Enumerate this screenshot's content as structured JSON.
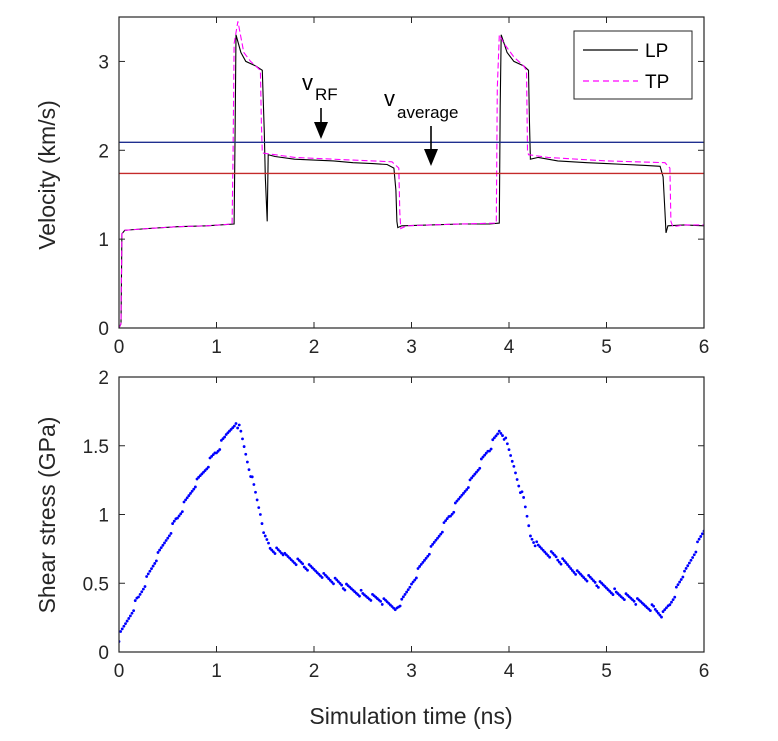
{
  "chart_data": [
    {
      "type": "line",
      "xlabel": "",
      "ylabel": "Velocity (km/s)",
      "xlim": [
        0,
        6
      ],
      "ylim": [
        0,
        3.5
      ],
      "xticks": [
        "0",
        "1",
        "2",
        "3",
        "4",
        "5",
        "6"
      ],
      "yticks": [
        "0",
        "1",
        "2",
        "3"
      ],
      "legend": {
        "position": "top-right",
        "entries": [
          "LP",
          "TP"
        ]
      },
      "series": [
        {
          "name": "LP",
          "color": "#000000",
          "style": "solid",
          "points": [
            [
              0,
              0
            ],
            [
              0.02,
              0.05
            ],
            [
              0.03,
              1.06
            ],
            [
              0.06,
              1.1
            ],
            [
              0.3,
              1.12
            ],
            [
              0.6,
              1.14
            ],
            [
              0.9,
              1.15
            ],
            [
              1.18,
              1.17
            ],
            [
              1.19,
              2.1
            ],
            [
              1.2,
              3.3
            ],
            [
              1.25,
              3.1
            ],
            [
              1.3,
              3.0
            ],
            [
              1.4,
              2.95
            ],
            [
              1.47,
              2.9
            ],
            [
              1.49,
              2.2
            ],
            [
              1.5,
              1.7
            ],
            [
              1.52,
              1.2
            ],
            [
              1.53,
              1.95
            ],
            [
              1.6,
              1.93
            ],
            [
              1.8,
              1.9
            ],
            [
              2.0,
              1.89
            ],
            [
              2.2,
              1.88
            ],
            [
              2.4,
              1.86
            ],
            [
              2.6,
              1.85
            ],
            [
              2.75,
              1.84
            ],
            [
              2.82,
              1.8
            ],
            [
              2.84,
              1.55
            ],
            [
              2.85,
              1.2
            ],
            [
              2.86,
              1.13
            ],
            [
              2.9,
              1.15
            ],
            [
              3.2,
              1.16
            ],
            [
              3.5,
              1.17
            ],
            [
              3.8,
              1.17
            ],
            [
              3.9,
              1.18
            ],
            [
              3.91,
              2.5
            ],
            [
              3.92,
              3.3
            ],
            [
              3.98,
              3.1
            ],
            [
              4.05,
              3.0
            ],
            [
              4.15,
              2.95
            ],
            [
              4.2,
              2.9
            ],
            [
              4.21,
              2.3
            ],
            [
              4.22,
              1.9
            ],
            [
              4.3,
              1.92
            ],
            [
              4.5,
              1.88
            ],
            [
              4.8,
              1.86
            ],
            [
              5.0,
              1.85
            ],
            [
              5.2,
              1.84
            ],
            [
              5.4,
              1.83
            ],
            [
              5.55,
              1.82
            ],
            [
              5.58,
              1.7
            ],
            [
              5.6,
              1.3
            ],
            [
              5.61,
              1.07
            ],
            [
              5.63,
              1.15
            ],
            [
              5.8,
              1.16
            ],
            [
              6.0,
              1.15
            ]
          ]
        },
        {
          "name": "TP",
          "color": "#ff00ff",
          "style": "dashed",
          "points": [
            [
              0,
              0
            ],
            [
              0.02,
              0.05
            ],
            [
              0.03,
              1.06
            ],
            [
              0.06,
              1.1
            ],
            [
              0.3,
              1.12
            ],
            [
              0.6,
              1.14
            ],
            [
              0.9,
              1.15
            ],
            [
              1.16,
              1.17
            ],
            [
              1.17,
              2.0
            ],
            [
              1.18,
              3.2
            ],
            [
              1.22,
              3.45
            ],
            [
              1.28,
              3.1
            ],
            [
              1.35,
              3.0
            ],
            [
              1.45,
              2.9
            ],
            [
              1.46,
              2.3
            ],
            [
              1.47,
              1.97
            ],
            [
              1.6,
              1.95
            ],
            [
              1.8,
              1.92
            ],
            [
              2.0,
              1.91
            ],
            [
              2.2,
              1.9
            ],
            [
              2.4,
              1.89
            ],
            [
              2.6,
              1.88
            ],
            [
              2.8,
              1.87
            ],
            [
              2.87,
              1.8
            ],
            [
              2.88,
              1.3
            ],
            [
              2.89,
              1.12
            ],
            [
              2.95,
              1.15
            ],
            [
              3.2,
              1.16
            ],
            [
              3.5,
              1.17
            ],
            [
              3.87,
              1.18
            ],
            [
              3.88,
              2.7
            ],
            [
              3.9,
              3.3
            ],
            [
              3.95,
              3.2
            ],
            [
              4.05,
              3.05
            ],
            [
              4.15,
              2.95
            ],
            [
              4.18,
              2.9
            ],
            [
              4.19,
              2.0
            ],
            [
              4.2,
              1.95
            ],
            [
              4.4,
              1.92
            ],
            [
              4.7,
              1.9
            ],
            [
              5.0,
              1.88
            ],
            [
              5.3,
              1.87
            ],
            [
              5.6,
              1.86
            ],
            [
              5.65,
              1.8
            ],
            [
              5.66,
              1.2
            ],
            [
              5.68,
              1.14
            ],
            [
              5.8,
              1.16
            ],
            [
              6.0,
              1.16
            ]
          ]
        },
        {
          "name": "v_RF",
          "color": "#1f2f8f",
          "style": "solid",
          "points": [
            [
              0,
              2.09
            ],
            [
              6,
              2.09
            ]
          ]
        },
        {
          "name": "v_average",
          "color": "#c42a2a",
          "style": "solid",
          "points": [
            [
              0,
              1.74
            ],
            [
              6,
              1.74
            ]
          ]
        }
      ],
      "annotations": [
        {
          "text": "v",
          "subscript": "RF",
          "x": 2.07,
          "y": 2.4,
          "arrow_to": [
            2.07,
            2.0
          ]
        },
        {
          "text": "v",
          "subscript": "average",
          "x": 3.22,
          "y": 2.2,
          "arrow_to": [
            3.22,
            1.75
          ]
        }
      ]
    },
    {
      "type": "scatter",
      "xlabel": "Simulation time (ns)",
      "ylabel": "Shear stress (GPa)",
      "xlim": [
        0,
        6
      ],
      "ylim": [
        0,
        2
      ],
      "xticks": [
        "0",
        "1",
        "2",
        "3",
        "4",
        "5",
        "6"
      ],
      "yticks": [
        "0",
        "0.5",
        "1",
        "1.5",
        "2"
      ],
      "series": [
        {
          "name": "shear-stress",
          "color": "#0000ff",
          "marker": "dot",
          "points": [
            [
              0,
              0.1
            ],
            [
              0.2,
              0.4
            ],
            [
              0.4,
              0.7
            ],
            [
              0.6,
              0.98
            ],
            [
              0.8,
              1.24
            ],
            [
              1.0,
              1.46
            ],
            [
              1.1,
              1.57
            ],
            [
              1.2,
              1.68
            ],
            [
              1.25,
              1.6
            ],
            [
              1.35,
              1.3
            ],
            [
              1.45,
              1.0
            ],
            [
              1.5,
              0.82
            ],
            [
              1.55,
              0.76
            ],
            [
              1.7,
              0.7
            ],
            [
              1.9,
              0.63
            ],
            [
              2.1,
              0.56
            ],
            [
              2.3,
              0.48
            ],
            [
              2.5,
              0.42
            ],
            [
              2.7,
              0.37
            ],
            [
              2.85,
              0.32
            ],
            [
              2.9,
              0.36
            ],
            [
              3.0,
              0.5
            ],
            [
              3.2,
              0.75
            ],
            [
              3.4,
              1.0
            ],
            [
              3.6,
              1.24
            ],
            [
              3.8,
              1.48
            ],
            [
              3.9,
              1.6
            ],
            [
              3.95,
              1.57
            ],
            [
              4.05,
              1.35
            ],
            [
              4.15,
              1.1
            ],
            [
              4.22,
              0.85
            ],
            [
              4.3,
              0.76
            ],
            [
              4.5,
              0.68
            ],
            [
              4.7,
              0.58
            ],
            [
              4.9,
              0.5
            ],
            [
              5.1,
              0.43
            ],
            [
              5.3,
              0.37
            ],
            [
              5.5,
              0.31
            ],
            [
              5.58,
              0.27
            ],
            [
              5.65,
              0.35
            ],
            [
              5.8,
              0.57
            ],
            [
              6.0,
              0.88
            ]
          ]
        }
      ]
    }
  ]
}
